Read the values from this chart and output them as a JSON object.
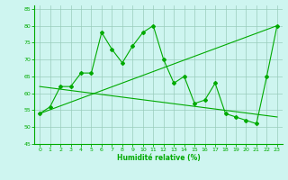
{
  "xlabel": "Humidité relative (%)",
  "xlim": [
    -0.5,
    23.5
  ],
  "ylim": [
    45,
    86
  ],
  "yticks": [
    45,
    50,
    55,
    60,
    65,
    70,
    75,
    80,
    85
  ],
  "xticks": [
    0,
    1,
    2,
    3,
    4,
    5,
    6,
    7,
    8,
    9,
    10,
    11,
    12,
    13,
    14,
    15,
    16,
    17,
    18,
    19,
    20,
    21,
    22,
    23
  ],
  "background_color": "#cef5f0",
  "grid_color": "#99ccbb",
  "line_color": "#00aa00",
  "main_line": {
    "x": [
      0,
      1,
      2,
      3,
      4,
      5,
      6,
      7,
      8,
      9,
      10,
      11,
      12,
      13,
      14,
      15,
      16,
      17,
      18,
      19,
      20,
      21,
      22,
      23
    ],
    "y": [
      54,
      56,
      62,
      62,
      66,
      66,
      78,
      73,
      69,
      74,
      78,
      80,
      70,
      63,
      65,
      57,
      58,
      63,
      54,
      53,
      52,
      51,
      65,
      80
    ]
  },
  "trend_up": {
    "x": [
      0,
      23
    ],
    "y": [
      54,
      80
    ]
  },
  "trend_down": {
    "x": [
      0,
      23
    ],
    "y": [
      62,
      53
    ]
  }
}
